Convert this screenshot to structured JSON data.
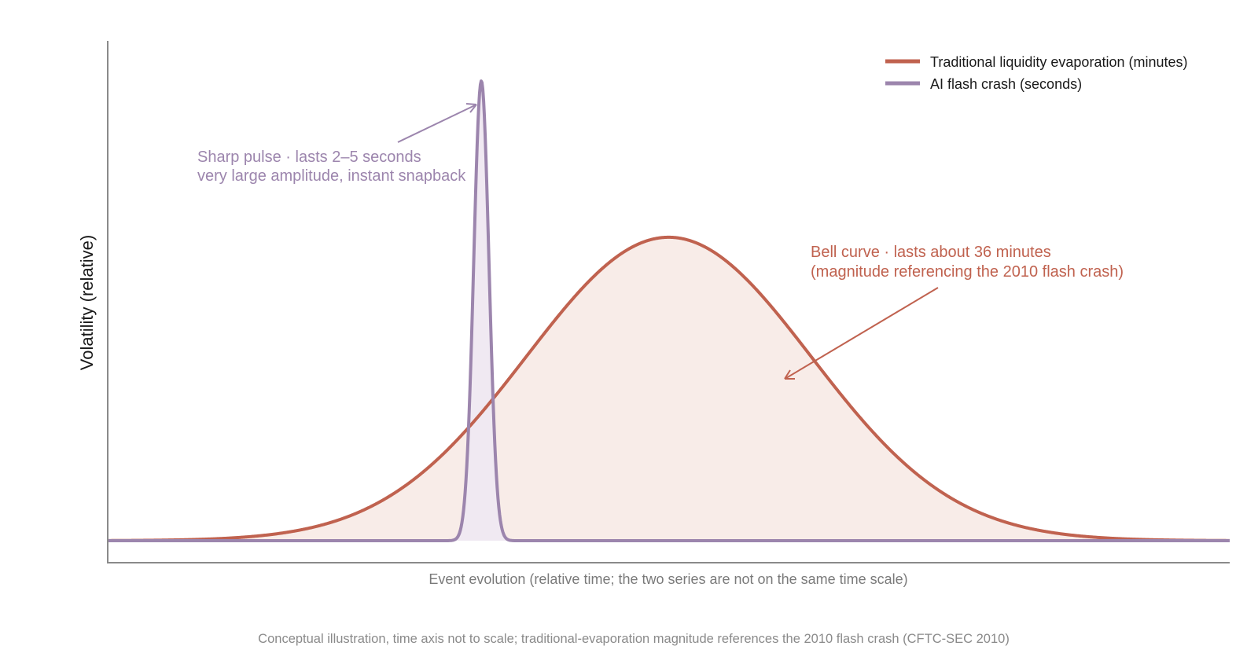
{
  "chart_data": {
    "type": "area",
    "title": "",
    "xlabel": "Event evolution (relative time; the two series are not on the same time scale)",
    "ylabel": "Volatility (relative)",
    "note": "Conceptual illustration, time axis not to scale; traditional-evaporation magnitude references the 2010 flash crash (CFTC-SEC 2010)",
    "xlim": [
      0,
      1
    ],
    "ylim": [
      0,
      1
    ],
    "grid": false,
    "legend_position": "top-right",
    "series": [
      {
        "name": "Traditional liquidity evaporation (minutes)",
        "color": "#c0624f",
        "fill": "#f8ece8",
        "shape": "gaussian",
        "center": 0.5,
        "sigma": 0.127,
        "peak": 0.66
      },
      {
        "name": "AI flash crash (seconds)",
        "color": "#9c85ad",
        "fill": "#f0e9f2",
        "shape": "gaussian",
        "center": 0.333,
        "sigma": 0.0068,
        "peak": 1.0
      }
    ],
    "annotations": [
      {
        "series": 1,
        "lines": [
          "Sharp pulse · lasts 2–5 seconds",
          "very large amplitude, instant snapback"
        ],
        "color": "#9c85ad"
      },
      {
        "series": 0,
        "lines": [
          "Bell curve · lasts about 36 minutes",
          "(magnitude referencing the 2010 flash crash)"
        ],
        "color": "#c0624f"
      }
    ]
  }
}
